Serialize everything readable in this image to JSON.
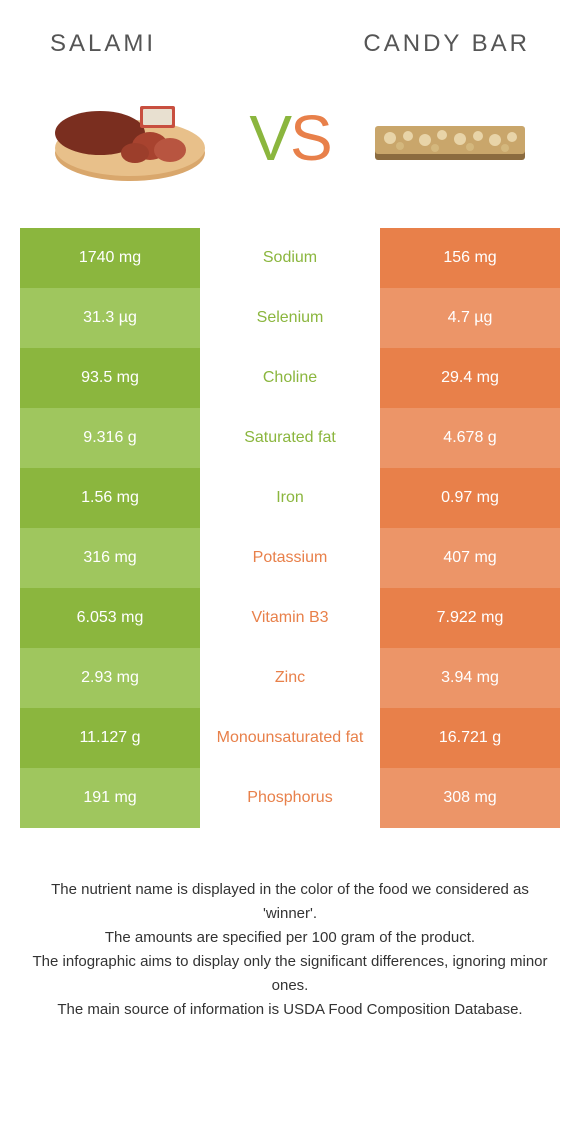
{
  "left_food": "SALAMI",
  "right_food": "CANDY BAR",
  "colors": {
    "left": "#8BB63E",
    "left_dim": "#9FC65E",
    "right": "#E8804A",
    "right_dim": "#EC9568",
    "background": "#ffffff"
  },
  "rows": [
    {
      "nutrient": "Sodium",
      "left": "1740 mg",
      "right": "156 mg",
      "winner": "left"
    },
    {
      "nutrient": "Selenium",
      "left": "31.3 µg",
      "right": "4.7 µg",
      "winner": "left"
    },
    {
      "nutrient": "Choline",
      "left": "93.5 mg",
      "right": "29.4 mg",
      "winner": "left"
    },
    {
      "nutrient": "Saturated fat",
      "left": "9.316 g",
      "right": "4.678 g",
      "winner": "left"
    },
    {
      "nutrient": "Iron",
      "left": "1.56 mg",
      "right": "0.97 mg",
      "winner": "left"
    },
    {
      "nutrient": "Potassium",
      "left": "316 mg",
      "right": "407 mg",
      "winner": "right"
    },
    {
      "nutrient": "Vitamin B3",
      "left": "6.053 mg",
      "right": "7.922 mg",
      "winner": "right"
    },
    {
      "nutrient": "Zinc",
      "left": "2.93 mg",
      "right": "3.94 mg",
      "winner": "right"
    },
    {
      "nutrient": "Monounsaturated fat",
      "left": "11.127 g",
      "right": "16.721 g",
      "winner": "right"
    },
    {
      "nutrient": "Phosphorus",
      "left": "191 mg",
      "right": "308 mg",
      "winner": "right"
    }
  ],
  "footer": {
    "line1": "The nutrient name is displayed in the color of the food we considered as 'winner'.",
    "line2": "The amounts are specified per 100 gram of the product.",
    "line3": "The infographic aims to display only the significant differences, ignoring minor ones.",
    "line4": "The main source of information is USDA Food Composition Database."
  }
}
